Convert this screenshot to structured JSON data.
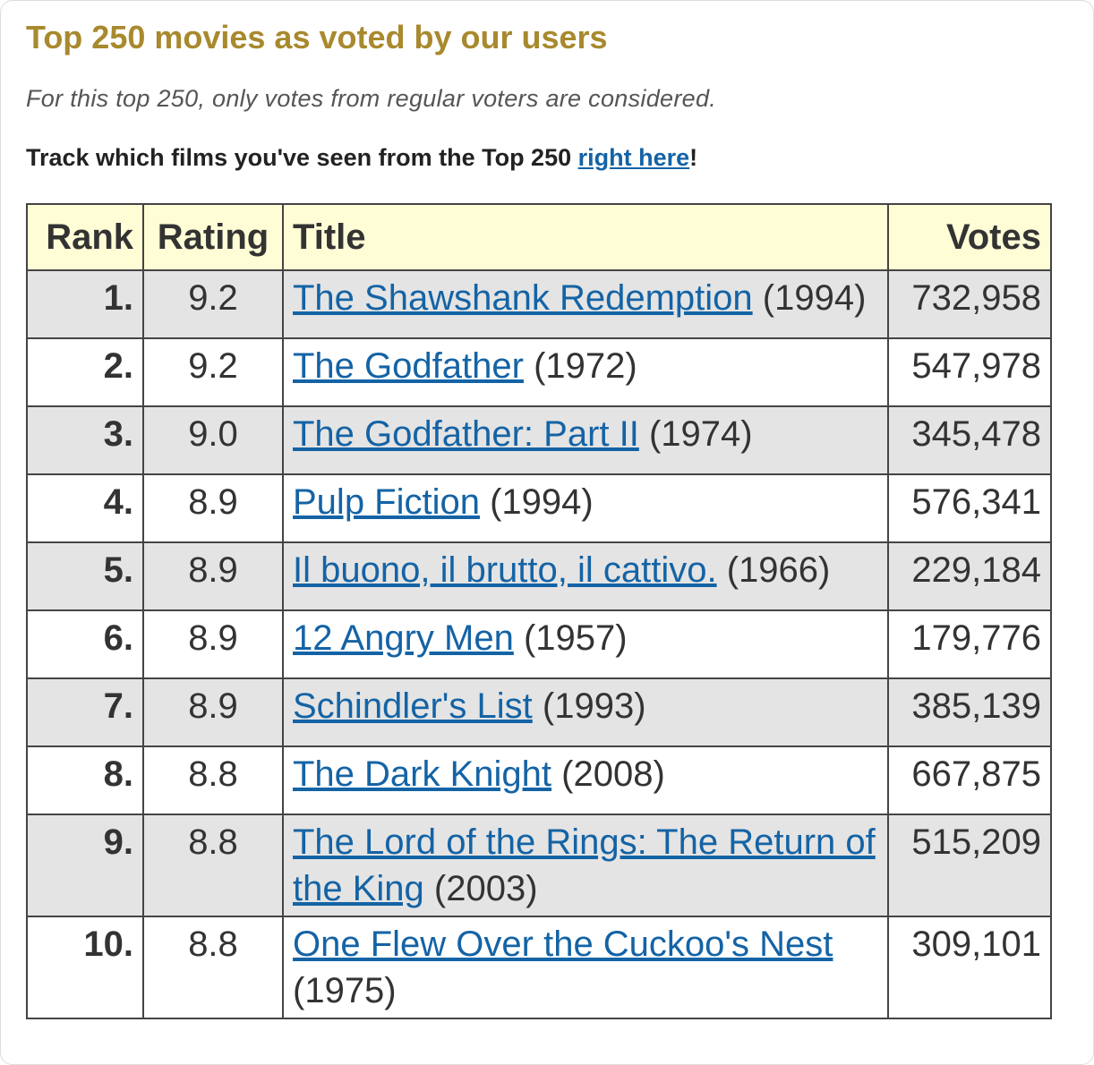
{
  "header": {
    "title": "Top 250 movies as voted by our users",
    "subtitle": "For this top 250, only votes from regular voters are considered.",
    "track_text": "Track which films you've seen from the Top 250",
    "track_link": "right here",
    "track_end": "!"
  },
  "table": {
    "columns": [
      "Rank",
      "Rating",
      "Title",
      "Votes"
    ],
    "rows": [
      [
        "1.",
        "9.2",
        "The Shawshank Redemption",
        "(1994)",
        "732,958"
      ],
      [
        "2.",
        "9.2",
        "The Godfather",
        "(1972)",
        "547,978"
      ],
      [
        "3.",
        "9.0",
        "The Godfather: Part II",
        "(1974)",
        "345,478"
      ],
      [
        "4.",
        "8.9",
        "Pulp Fiction",
        "(1994)",
        "576,341"
      ],
      [
        "5.",
        "8.9",
        "Il buono, il brutto, il cattivo.",
        "(1966)",
        "229,184"
      ],
      [
        "6.",
        "8.9",
        "12 Angry Men",
        "(1957)",
        "179,776"
      ],
      [
        "7.",
        "8.9",
        "Schindler's List",
        "(1993)",
        "385,139"
      ],
      [
        "8.",
        "8.8",
        "The Dark Knight",
        "(2008)",
        "667,875"
      ],
      [
        "9.",
        "8.8",
        "The Lord of the Rings: The Return of the King",
        "(2003)",
        "515,209"
      ],
      [
        "10.",
        "8.8",
        "One Flew Over the Cuckoo's Nest",
        "(1975)",
        "309,101"
      ]
    ]
  }
}
